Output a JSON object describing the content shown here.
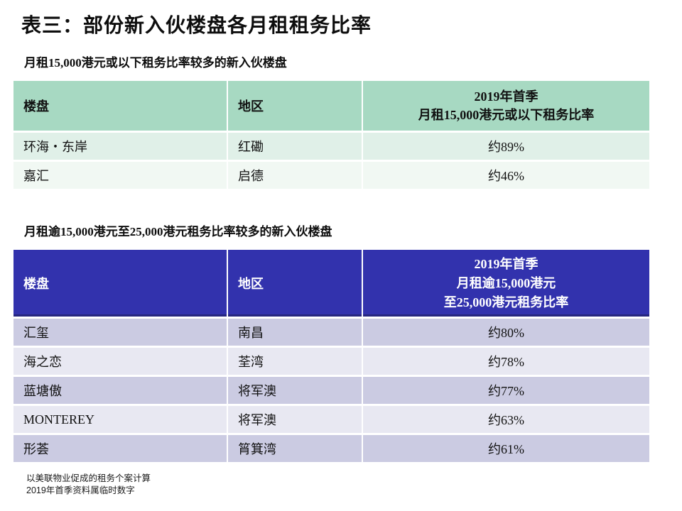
{
  "page": {
    "title": "表三：部份新入伙楼盘各月租租务比率"
  },
  "tables": [
    {
      "subtitle": "月租15,000港元或以下租务比率较多的新入伙楼盘",
      "headers": [
        "楼盘",
        "地区",
        "2019年首季\n月租15,000港元或以下租务比率"
      ],
      "rows": [
        [
          "环海・东岸",
          "红磡",
          "约89%"
        ],
        [
          "嘉汇",
          "启德",
          "约46%"
        ]
      ]
    },
    {
      "subtitle": "月租逾15,000港元至25,000港元租务比率较多的新入伙楼盘",
      "headers": [
        "楼盘",
        "地区",
        "2019年首季\n月租逾15,000港元\n至25,000港元租务比率"
      ],
      "rows": [
        [
          "汇玺",
          "南昌",
          "约80%"
        ],
        [
          "海之恋",
          "荃湾",
          "约78%"
        ],
        [
          "蓝塘傲",
          "将军澳",
          "约77%"
        ],
        [
          "MONTEREY",
          "将军澳",
          "约63%"
        ],
        [
          "形荟",
          "筲箕湾",
          "约61%"
        ]
      ]
    }
  ],
  "footnotes": [
    "以美联物业促成的租务个案计算",
    "2019年首季资料属临时数字"
  ],
  "colors": {
    "table1_header_bg": "#a7d9c2",
    "table1_row_odd": "#e0f0e8",
    "table1_row_even": "#f1f8f3",
    "table2_header_bg": "#3232ad",
    "table2_header_text": "#ffffff",
    "table2_header_edge": "#26267f",
    "table2_row_odd": "#cbcbe2",
    "table2_row_even": "#e8e8f2"
  }
}
